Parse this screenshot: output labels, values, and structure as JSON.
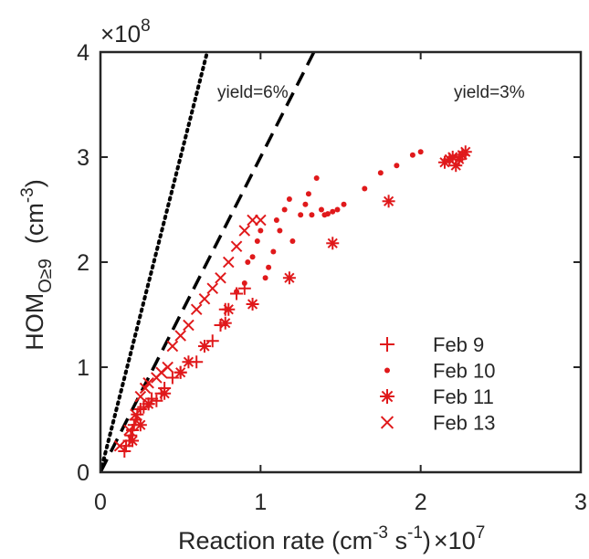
{
  "chart_data": {
    "type": "scatter",
    "xlabel": "Reaction rate (cm",
    "xlabel_exp1": "-3",
    "xlabel_mid": " s",
    "xlabel_exp2": "-1",
    "xlabel_close": ")",
    "x_multiplier": "×10",
    "x_multiplier_exp": "7",
    "ylabel_main": "HOM",
    "ylabel_sub": "O≥9",
    "ylabel_unit": "(cm",
    "ylabel_unit_exp": "-3",
    "ylabel_unit_close": ")",
    "y_multiplier": "×10",
    "y_multiplier_exp": "8",
    "xlim": [
      0,
      3
    ],
    "ylim": [
      0,
      4
    ],
    "x_ticks": [
      "0",
      "1",
      "2",
      "3"
    ],
    "y_ticks": [
      "0",
      "1",
      "2",
      "3",
      "4"
    ],
    "grid": false,
    "legend_position": "bottom-right",
    "color": "#e0191b",
    "reference_lines": [
      {
        "label": "yield=6%",
        "slope": 6,
        "style": "dotted"
      },
      {
        "label": "yield=3%",
        "slope": 3,
        "style": "dashed"
      }
    ],
    "series": [
      {
        "name": "Feb 9",
        "marker": "plus",
        "points": [
          [
            0.15,
            0.2
          ],
          [
            0.16,
            0.25
          ],
          [
            0.18,
            0.3
          ],
          [
            0.19,
            0.35
          ],
          [
            0.2,
            0.4
          ],
          [
            0.21,
            0.45
          ],
          [
            0.22,
            0.5
          ],
          [
            0.23,
            0.55
          ],
          [
            0.25,
            0.6
          ],
          [
            0.27,
            0.62
          ],
          [
            0.3,
            0.65
          ],
          [
            0.32,
            0.7
          ],
          [
            0.35,
            0.68
          ],
          [
            0.38,
            0.75
          ],
          [
            0.4,
            0.8
          ],
          [
            0.45,
            0.9
          ],
          [
            0.5,
            0.95
          ],
          [
            0.6,
            1.05
          ],
          [
            0.7,
            1.25
          ],
          [
            0.75,
            1.4
          ],
          [
            0.78,
            1.55
          ],
          [
            0.85,
            1.7
          ],
          [
            0.9,
            1.75
          ]
        ]
      },
      {
        "name": "Feb 10",
        "marker": "dot",
        "points": [
          [
            0.85,
            1.72
          ],
          [
            0.9,
            1.8
          ],
          [
            0.92,
            2.0
          ],
          [
            0.95,
            2.05
          ],
          [
            0.98,
            2.2
          ],
          [
            1.0,
            2.3
          ],
          [
            1.03,
            1.85
          ],
          [
            1.05,
            1.95
          ],
          [
            1.08,
            2.1
          ],
          [
            1.1,
            2.4
          ],
          [
            1.12,
            2.3
          ],
          [
            1.15,
            2.5
          ],
          [
            1.18,
            2.6
          ],
          [
            1.2,
            2.2
          ],
          [
            1.25,
            2.45
          ],
          [
            1.28,
            2.55
          ],
          [
            1.3,
            2.65
          ],
          [
            1.32,
            2.45
          ],
          [
            1.35,
            2.8
          ],
          [
            1.38,
            2.5
          ],
          [
            1.4,
            2.45
          ],
          [
            1.42,
            2.46
          ],
          [
            1.45,
            2.48
          ],
          [
            1.48,
            2.5
          ],
          [
            1.52,
            2.55
          ],
          [
            1.65,
            2.7
          ],
          [
            1.75,
            2.85
          ],
          [
            1.85,
            2.92
          ],
          [
            1.95,
            3.02
          ],
          [
            2.0,
            3.05
          ]
        ]
      },
      {
        "name": "Feb 11",
        "marker": "star",
        "points": [
          [
            0.2,
            0.3
          ],
          [
            0.25,
            0.45
          ],
          [
            0.3,
            0.65
          ],
          [
            0.4,
            0.75
          ],
          [
            0.5,
            0.95
          ],
          [
            0.55,
            1.05
          ],
          [
            0.65,
            1.2
          ],
          [
            0.78,
            1.42
          ],
          [
            0.8,
            1.55
          ],
          [
            0.95,
            1.6
          ],
          [
            1.18,
            1.85
          ],
          [
            1.45,
            2.18
          ],
          [
            1.8,
            2.58
          ],
          [
            2.15,
            2.95
          ],
          [
            2.18,
            2.98
          ],
          [
            2.2,
            3.0
          ],
          [
            2.22,
            2.92
          ],
          [
            2.24,
            2.98
          ],
          [
            2.26,
            3.02
          ],
          [
            2.28,
            3.05
          ]
        ]
      },
      {
        "name": "Feb 13",
        "marker": "cross",
        "points": [
          [
            0.12,
            0.25
          ],
          [
            0.18,
            0.4
          ],
          [
            0.22,
            0.55
          ],
          [
            0.25,
            0.72
          ],
          [
            0.28,
            0.8
          ],
          [
            0.3,
            0.85
          ],
          [
            0.35,
            0.9
          ],
          [
            0.38,
            0.95
          ],
          [
            0.42,
            1.0
          ],
          [
            0.45,
            1.2
          ],
          [
            0.5,
            1.3
          ],
          [
            0.55,
            1.4
          ],
          [
            0.6,
            1.55
          ],
          [
            0.65,
            1.65
          ],
          [
            0.7,
            1.75
          ],
          [
            0.75,
            1.85
          ],
          [
            0.8,
            2.0
          ],
          [
            0.85,
            2.15
          ],
          [
            0.9,
            2.3
          ],
          [
            0.95,
            2.4
          ],
          [
            1.0,
            2.4
          ]
        ]
      }
    ]
  }
}
